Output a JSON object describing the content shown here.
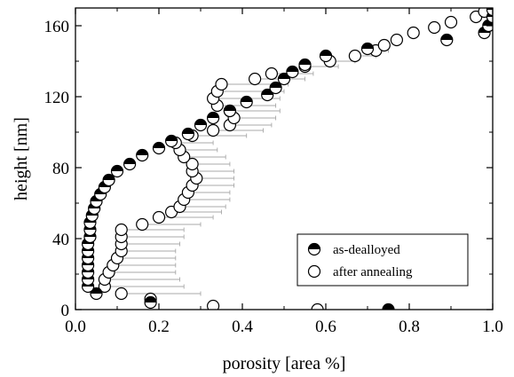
{
  "chart_data": {
    "type": "scatter",
    "xlabel": "porosity [area %]",
    "ylabel": "height [nm]",
    "xlim": [
      0.0,
      1.0
    ],
    "ylim": [
      0,
      170
    ],
    "x_ticks": [
      0.0,
      0.2,
      0.4,
      0.6,
      0.8,
      1.0
    ],
    "y_ticks": [
      0,
      40,
      80,
      120,
      160
    ],
    "x_tick_labels": [
      "0.0",
      "0.2",
      "0.4",
      "0.6",
      "0.8",
      "1.0"
    ],
    "y_tick_labels": [
      "0",
      "40",
      "80",
      "120",
      "160"
    ],
    "legend_position": "bottom-right",
    "series": [
      {
        "name": "as-dealloyed",
        "marker": "half-filled-circle",
        "color": "#000000",
        "points": [
          [
            0.75,
            0
          ],
          [
            0.18,
            4
          ],
          [
            0.05,
            9
          ],
          [
            0.03,
            13
          ],
          [
            0.03,
            17
          ],
          [
            0.03,
            21
          ],
          [
            0.03,
            25
          ],
          [
            0.03,
            29
          ],
          [
            0.03,
            33
          ],
          [
            0.03,
            37
          ],
          [
            0.035,
            41
          ],
          [
            0.035,
            45
          ],
          [
            0.035,
            49
          ],
          [
            0.04,
            53
          ],
          [
            0.045,
            57
          ],
          [
            0.05,
            61
          ],
          [
            0.06,
            65
          ],
          [
            0.07,
            69
          ],
          [
            0.08,
            73
          ],
          [
            0.1,
            78
          ],
          [
            0.13,
            82
          ],
          [
            0.16,
            87
          ],
          [
            0.2,
            91
          ],
          [
            0.23,
            95
          ],
          [
            0.27,
            99
          ],
          [
            0.3,
            104
          ],
          [
            0.33,
            108
          ],
          [
            0.37,
            112
          ],
          [
            0.41,
            117
          ],
          [
            0.46,
            121
          ],
          [
            0.48,
            125
          ],
          [
            0.5,
            130
          ],
          [
            0.52,
            134
          ],
          [
            0.55,
            138
          ],
          [
            0.6,
            143
          ],
          [
            0.7,
            147
          ],
          [
            0.89,
            152
          ],
          [
            0.98,
            156
          ],
          [
            0.99,
            160
          ],
          [
            1.0,
            165
          ],
          [
            1.0,
            169
          ]
        ]
      },
      {
        "name": "after annealing",
        "marker": "open-circle",
        "color": "#000000",
        "points": [
          [
            0.58,
            0
          ],
          [
            0.33,
            2
          ],
          [
            0.18,
            6
          ],
          [
            0.11,
            9
          ],
          [
            0.07,
            13
          ],
          [
            0.07,
            17
          ],
          [
            0.08,
            21
          ],
          [
            0.09,
            25
          ],
          [
            0.1,
            29
          ],
          [
            0.11,
            33
          ],
          [
            0.11,
            37
          ],
          [
            0.11,
            41
          ],
          [
            0.11,
            45
          ],
          [
            0.16,
            48
          ],
          [
            0.2,
            52
          ],
          [
            0.23,
            55
          ],
          [
            0.25,
            58
          ],
          [
            0.26,
            62
          ],
          [
            0.27,
            66
          ],
          [
            0.28,
            70
          ],
          [
            0.29,
            74
          ],
          [
            0.28,
            78
          ],
          [
            0.28,
            82
          ],
          [
            0.26,
            86
          ],
          [
            0.25,
            90
          ],
          [
            0.24,
            94
          ],
          [
            0.28,
            98
          ],
          [
            0.33,
            101
          ],
          [
            0.37,
            104
          ],
          [
            0.38,
            108
          ],
          [
            0.37,
            112
          ],
          [
            0.34,
            115
          ],
          [
            0.33,
            119
          ],
          [
            0.34,
            123
          ],
          [
            0.35,
            127
          ],
          [
            0.43,
            130
          ],
          [
            0.47,
            133
          ],
          [
            0.55,
            137
          ],
          [
            0.61,
            140
          ],
          [
            0.67,
            143
          ],
          [
            0.72,
            146
          ],
          [
            0.74,
            149
          ],
          [
            0.77,
            152
          ],
          [
            0.81,
            156
          ],
          [
            0.86,
            159
          ],
          [
            0.9,
            162
          ],
          [
            0.96,
            165
          ],
          [
            0.98,
            168
          ]
        ]
      }
    ],
    "error_bars": {
      "description": "horizontal bars to the right of the after-annealing points",
      "segments": [
        [
          0.11,
          0.3,
          9
        ],
        [
          0.07,
          0.26,
          13
        ],
        [
          0.07,
          0.25,
          17
        ],
        [
          0.08,
          0.24,
          21
        ],
        [
          0.09,
          0.24,
          25
        ],
        [
          0.1,
          0.24,
          29
        ],
        [
          0.11,
          0.24,
          33
        ],
        [
          0.11,
          0.25,
          37
        ],
        [
          0.11,
          0.26,
          41
        ],
        [
          0.11,
          0.26,
          45
        ],
        [
          0.16,
          0.3,
          48
        ],
        [
          0.2,
          0.33,
          52
        ],
        [
          0.23,
          0.35,
          55
        ],
        [
          0.25,
          0.36,
          58
        ],
        [
          0.26,
          0.37,
          62
        ],
        [
          0.27,
          0.37,
          66
        ],
        [
          0.28,
          0.38,
          70
        ],
        [
          0.29,
          0.38,
          74
        ],
        [
          0.28,
          0.38,
          78
        ],
        [
          0.28,
          0.37,
          82
        ],
        [
          0.26,
          0.36,
          86
        ],
        [
          0.25,
          0.34,
          90
        ],
        [
          0.24,
          0.33,
          94
        ],
        [
          0.28,
          0.41,
          98
        ],
        [
          0.33,
          0.45,
          101
        ],
        [
          0.37,
          0.47,
          104
        ],
        [
          0.38,
          0.48,
          108
        ],
        [
          0.37,
          0.49,
          112
        ],
        [
          0.34,
          0.48,
          115
        ],
        [
          0.33,
          0.49,
          119
        ],
        [
          0.34,
          0.5,
          123
        ],
        [
          0.35,
          0.51,
          127
        ],
        [
          0.43,
          0.55,
          130
        ],
        [
          0.47,
          0.57,
          133
        ],
        [
          0.55,
          0.63,
          137
        ],
        [
          0.61,
          0.67,
          140
        ],
        [
          0.67,
          0.72,
          143
        ],
        [
          0.72,
          0.75,
          146
        ]
      ]
    }
  }
}
